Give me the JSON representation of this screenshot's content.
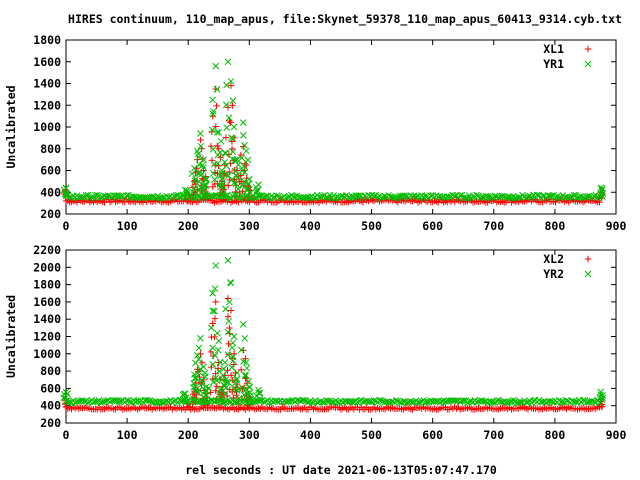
{
  "title": "HIRES continuum, 110_map_apus, file:Skynet_59378_110_map_apus_60413_9314.cyb.txt",
  "xlabel": "rel seconds : UT date 2021-06-13T05:07:47.170",
  "colors": {
    "series1": "#ff0000",
    "series2": "#00bb00"
  },
  "chart_data": [
    {
      "type": "scatter",
      "ylabel": "Uncalibrated",
      "xlim": [
        0,
        900
      ],
      "ylim": [
        200,
        1800
      ],
      "xticks": [
        "0",
        "100",
        "200",
        "300",
        "400",
        "500",
        "600",
        "700",
        "800",
        "900"
      ],
      "yticks": [
        "200",
        "400",
        "600",
        "800",
        "1000",
        "1200",
        "1400",
        "1600",
        "1800"
      ],
      "legend_position": "top-right",
      "grid": false,
      "series": [
        {
          "name": "XL1",
          "marker": "+",
          "color": "#ff0000",
          "baseline": 320,
          "x": [
            0,
            200,
            210,
            215,
            220,
            225,
            230,
            240,
            245,
            250,
            255,
            260,
            265,
            270,
            275,
            280,
            290,
            295,
            300,
            875
          ],
          "y": [
            420,
            380,
            500,
            700,
            880,
            600,
            450,
            1100,
            1350,
            800,
            500,
            650,
            1180,
            1380,
            900,
            600,
            820,
            650,
            450,
            400
          ]
        },
        {
          "name": "YR1",
          "marker": "x",
          "color": "#00bb00",
          "baseline": 360,
          "x": [
            0,
            195,
            210,
            215,
            220,
            225,
            230,
            240,
            245,
            250,
            255,
            260,
            265,
            270,
            275,
            280,
            290,
            295,
            300,
            315,
            875
          ],
          "y": [
            440,
            420,
            620,
            780,
            940,
            700,
            520,
            1250,
            1560,
            950,
            600,
            760,
            1600,
            1420,
            1000,
            700,
            1040,
            780,
            520,
            470,
            440
          ]
        }
      ]
    },
    {
      "type": "scatter",
      "ylabel": "Uncalibrated",
      "xlim": [
        0,
        900
      ],
      "ylim": [
        200,
        2200
      ],
      "xticks": [
        "0",
        "100",
        "200",
        "300",
        "400",
        "500",
        "600",
        "700",
        "800",
        "900"
      ],
      "yticks": [
        "200",
        "400",
        "600",
        "800",
        "1000",
        "1200",
        "1400",
        "1600",
        "1800",
        "2000",
        "2200"
      ],
      "legend_position": "top-right",
      "grid": false,
      "series": [
        {
          "name": "XL2",
          "marker": "+",
          "color": "#ff0000",
          "baseline": 370,
          "x": [
            0,
            200,
            210,
            215,
            220,
            225,
            230,
            240,
            245,
            250,
            255,
            260,
            265,
            270,
            275,
            280,
            290,
            295,
            300,
            875
          ],
          "y": [
            480,
            420,
            560,
            820,
            1000,
            700,
            500,
            1350,
            1600,
            900,
            560,
            750,
            1640,
            1500,
            1000,
            650,
            1040,
            720,
            500,
            470
          ]
        },
        {
          "name": "YR2",
          "marker": "x",
          "color": "#00bb00",
          "baseline": 450,
          "x": [
            0,
            195,
            210,
            215,
            220,
            225,
            230,
            240,
            245,
            250,
            255,
            260,
            265,
            270,
            275,
            280,
            290,
            295,
            300,
            315,
            875
          ],
          "y": [
            560,
            540,
            760,
            980,
            1180,
            850,
            620,
            1700,
            2020,
            1150,
            700,
            900,
            2080,
            1820,
            1200,
            780,
            1340,
            900,
            620,
            580,
            560
          ]
        }
      ]
    }
  ]
}
